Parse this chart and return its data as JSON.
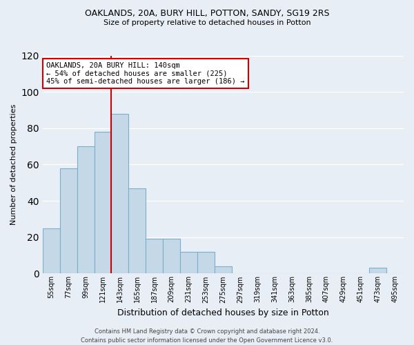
{
  "title1": "OAKLANDS, 20A, BURY HILL, POTTON, SANDY, SG19 2RS",
  "title2": "Size of property relative to detached houses in Potton",
  "xlabel": "Distribution of detached houses by size in Potton",
  "ylabel": "Number of detached properties",
  "bar_labels": [
    "55sqm",
    "77sqm",
    "99sqm",
    "121sqm",
    "143sqm",
    "165sqm",
    "187sqm",
    "209sqm",
    "231sqm",
    "253sqm",
    "275sqm",
    "297sqm",
    "319sqm",
    "341sqm",
    "363sqm",
    "385sqm",
    "407sqm",
    "429sqm",
    "451sqm",
    "473sqm",
    "495sqm"
  ],
  "bar_values": [
    25,
    58,
    70,
    78,
    88,
    47,
    19,
    19,
    12,
    12,
    4,
    0,
    0,
    0,
    0,
    0,
    0,
    0,
    0,
    3,
    0
  ],
  "bar_color": "#c5d8e8",
  "bar_edge_color": "#7aafc8",
  "vline_index": 4,
  "annotation_title": "OAKLANDS, 20A BURY HILL: 140sqm",
  "annotation_line1": "← 54% of detached houses are smaller (225)",
  "annotation_line2": "45% of semi-detached houses are larger (186) →",
  "annotation_box_color": "#ffffff",
  "annotation_box_edge": "#cc0000",
  "vline_color": "#cc0000",
  "footer1": "Contains HM Land Registry data © Crown copyright and database right 2024.",
  "footer2": "Contains public sector information licensed under the Open Government Licence v3.0.",
  "ylim": [
    0,
    120
  ],
  "yticks": [
    0,
    20,
    40,
    60,
    80,
    100,
    120
  ],
  "background_color": "#e8eef5",
  "plot_bg_color": "#e8eef5",
  "grid_color": "#ffffff",
  "title1_fontsize": 9,
  "title2_fontsize": 8,
  "ylabel_fontsize": 8,
  "xlabel_fontsize": 9,
  "tick_fontsize": 7,
  "footer_fontsize": 6,
  "annotation_fontsize": 7.5
}
